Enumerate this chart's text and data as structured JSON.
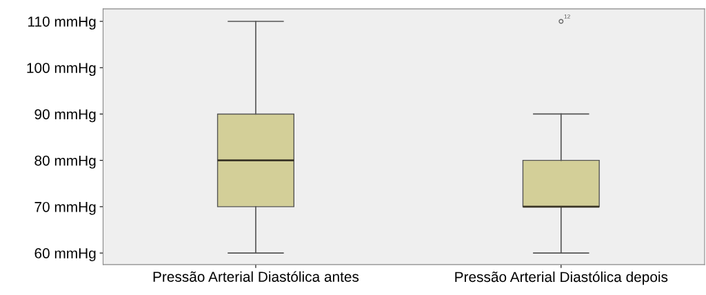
{
  "chart_data": {
    "type": "box",
    "categories": [
      "Pressão Arterial Diastólica antes",
      "Pressão Arterial Diastólica depois"
    ],
    "boxes": [
      {
        "low": 60,
        "q1": 70,
        "median": 80,
        "q3": 90,
        "high": 110
      },
      {
        "low": 60,
        "q1": 70,
        "median": 70,
        "q3": 80,
        "high": 90,
        "outliers": [
          110
        ]
      }
    ],
    "color": "#d3cf98",
    "ylim": [
      57.5,
      112.7
    ],
    "yticks": [
      {
        "value": 60,
        "label": "60 mmHg"
      },
      {
        "value": 70,
        "label": "70 mmHg"
      },
      {
        "value": 80,
        "label": "80 mmHg"
      },
      {
        "value": 90,
        "label": "90 mmHg"
      },
      {
        "value": 100,
        "label": "100 mmHg"
      },
      {
        "value": 110,
        "label": "110 mmHg"
      }
    ],
    "annotations": [
      "12"
    ],
    "grid": false,
    "legend": false
  }
}
